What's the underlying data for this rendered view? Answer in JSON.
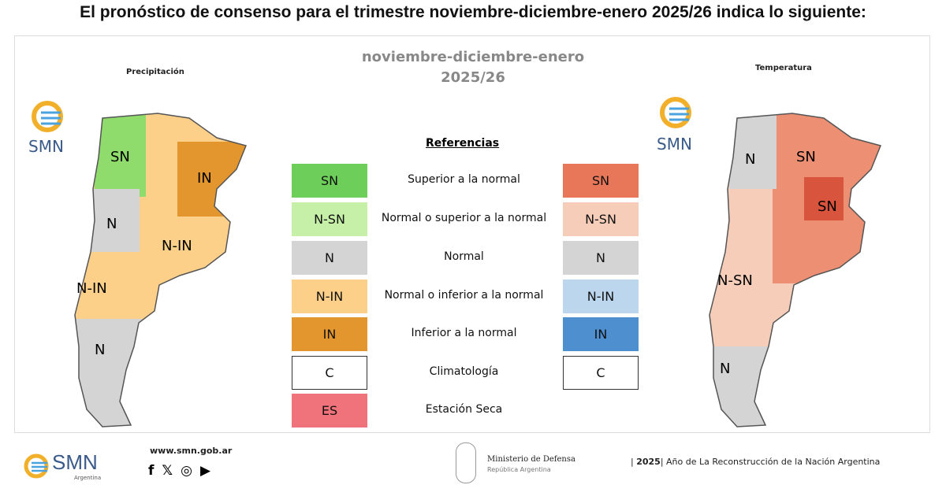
{
  "title": "El pronóstico de consenso para el trimestre noviembre-diciembre-enero 2025/26 indica lo siguiente:",
  "period": {
    "line1": "noviembre-diciembre-enero",
    "line2": "2025/26"
  },
  "maps": {
    "precip": {
      "title": "Precipitación",
      "labels": [
        "SN",
        "IN",
        "N",
        "N-IN",
        "N-IN",
        "N"
      ],
      "logo": "SMN"
    },
    "temp": {
      "title": "Temperatura",
      "labels": [
        "N",
        "SN",
        "SN",
        "N-SN",
        "N"
      ],
      "logo": "SMN"
    }
  },
  "legend": {
    "title": "Referencias",
    "rows": [
      {
        "left": "SN",
        "label": "Superior a la normal",
        "right": "SN",
        "left_color": "#6dcf5a",
        "right_color": "#e8775a"
      },
      {
        "left": "N-SN",
        "label": "Normal o superior a la normal",
        "right": "N-SN",
        "left_color": "#c6f0a8",
        "right_color": "#f6cdb9"
      },
      {
        "left": "N",
        "label": "Normal",
        "right": "N",
        "left_color": "#d4d4d4",
        "right_color": "#d4d4d4"
      },
      {
        "left": "N-IN",
        "label": "Normal o inferior a la normal",
        "right": "N-IN",
        "left_color": "#fdd08a",
        "right_color": "#bcd6ee"
      },
      {
        "left": "IN",
        "label": "Inferior a la normal",
        "right": "IN",
        "left_color": "#e3962e",
        "right_color": "#4d8fcf"
      },
      {
        "left": "C",
        "label": "Climatología",
        "right": "C",
        "left_color": "#ffffff",
        "right_color": "#ffffff"
      },
      {
        "left": "ES",
        "label": "Estación Seca",
        "left_color": "#f0727a"
      }
    ]
  },
  "footer": {
    "logo": "SMN",
    "logo_sub": "Argentina",
    "url": "www.smn.gob.ar",
    "social": [
      "facebook-icon",
      "x-icon",
      "instagram-icon",
      "youtube-icon"
    ],
    "ministry": "Ministerio de Defensa",
    "ministry_sub": "República Argentina",
    "year": "2025",
    "motto": "Año de La Reconstrucción de la Nación Argentina"
  }
}
